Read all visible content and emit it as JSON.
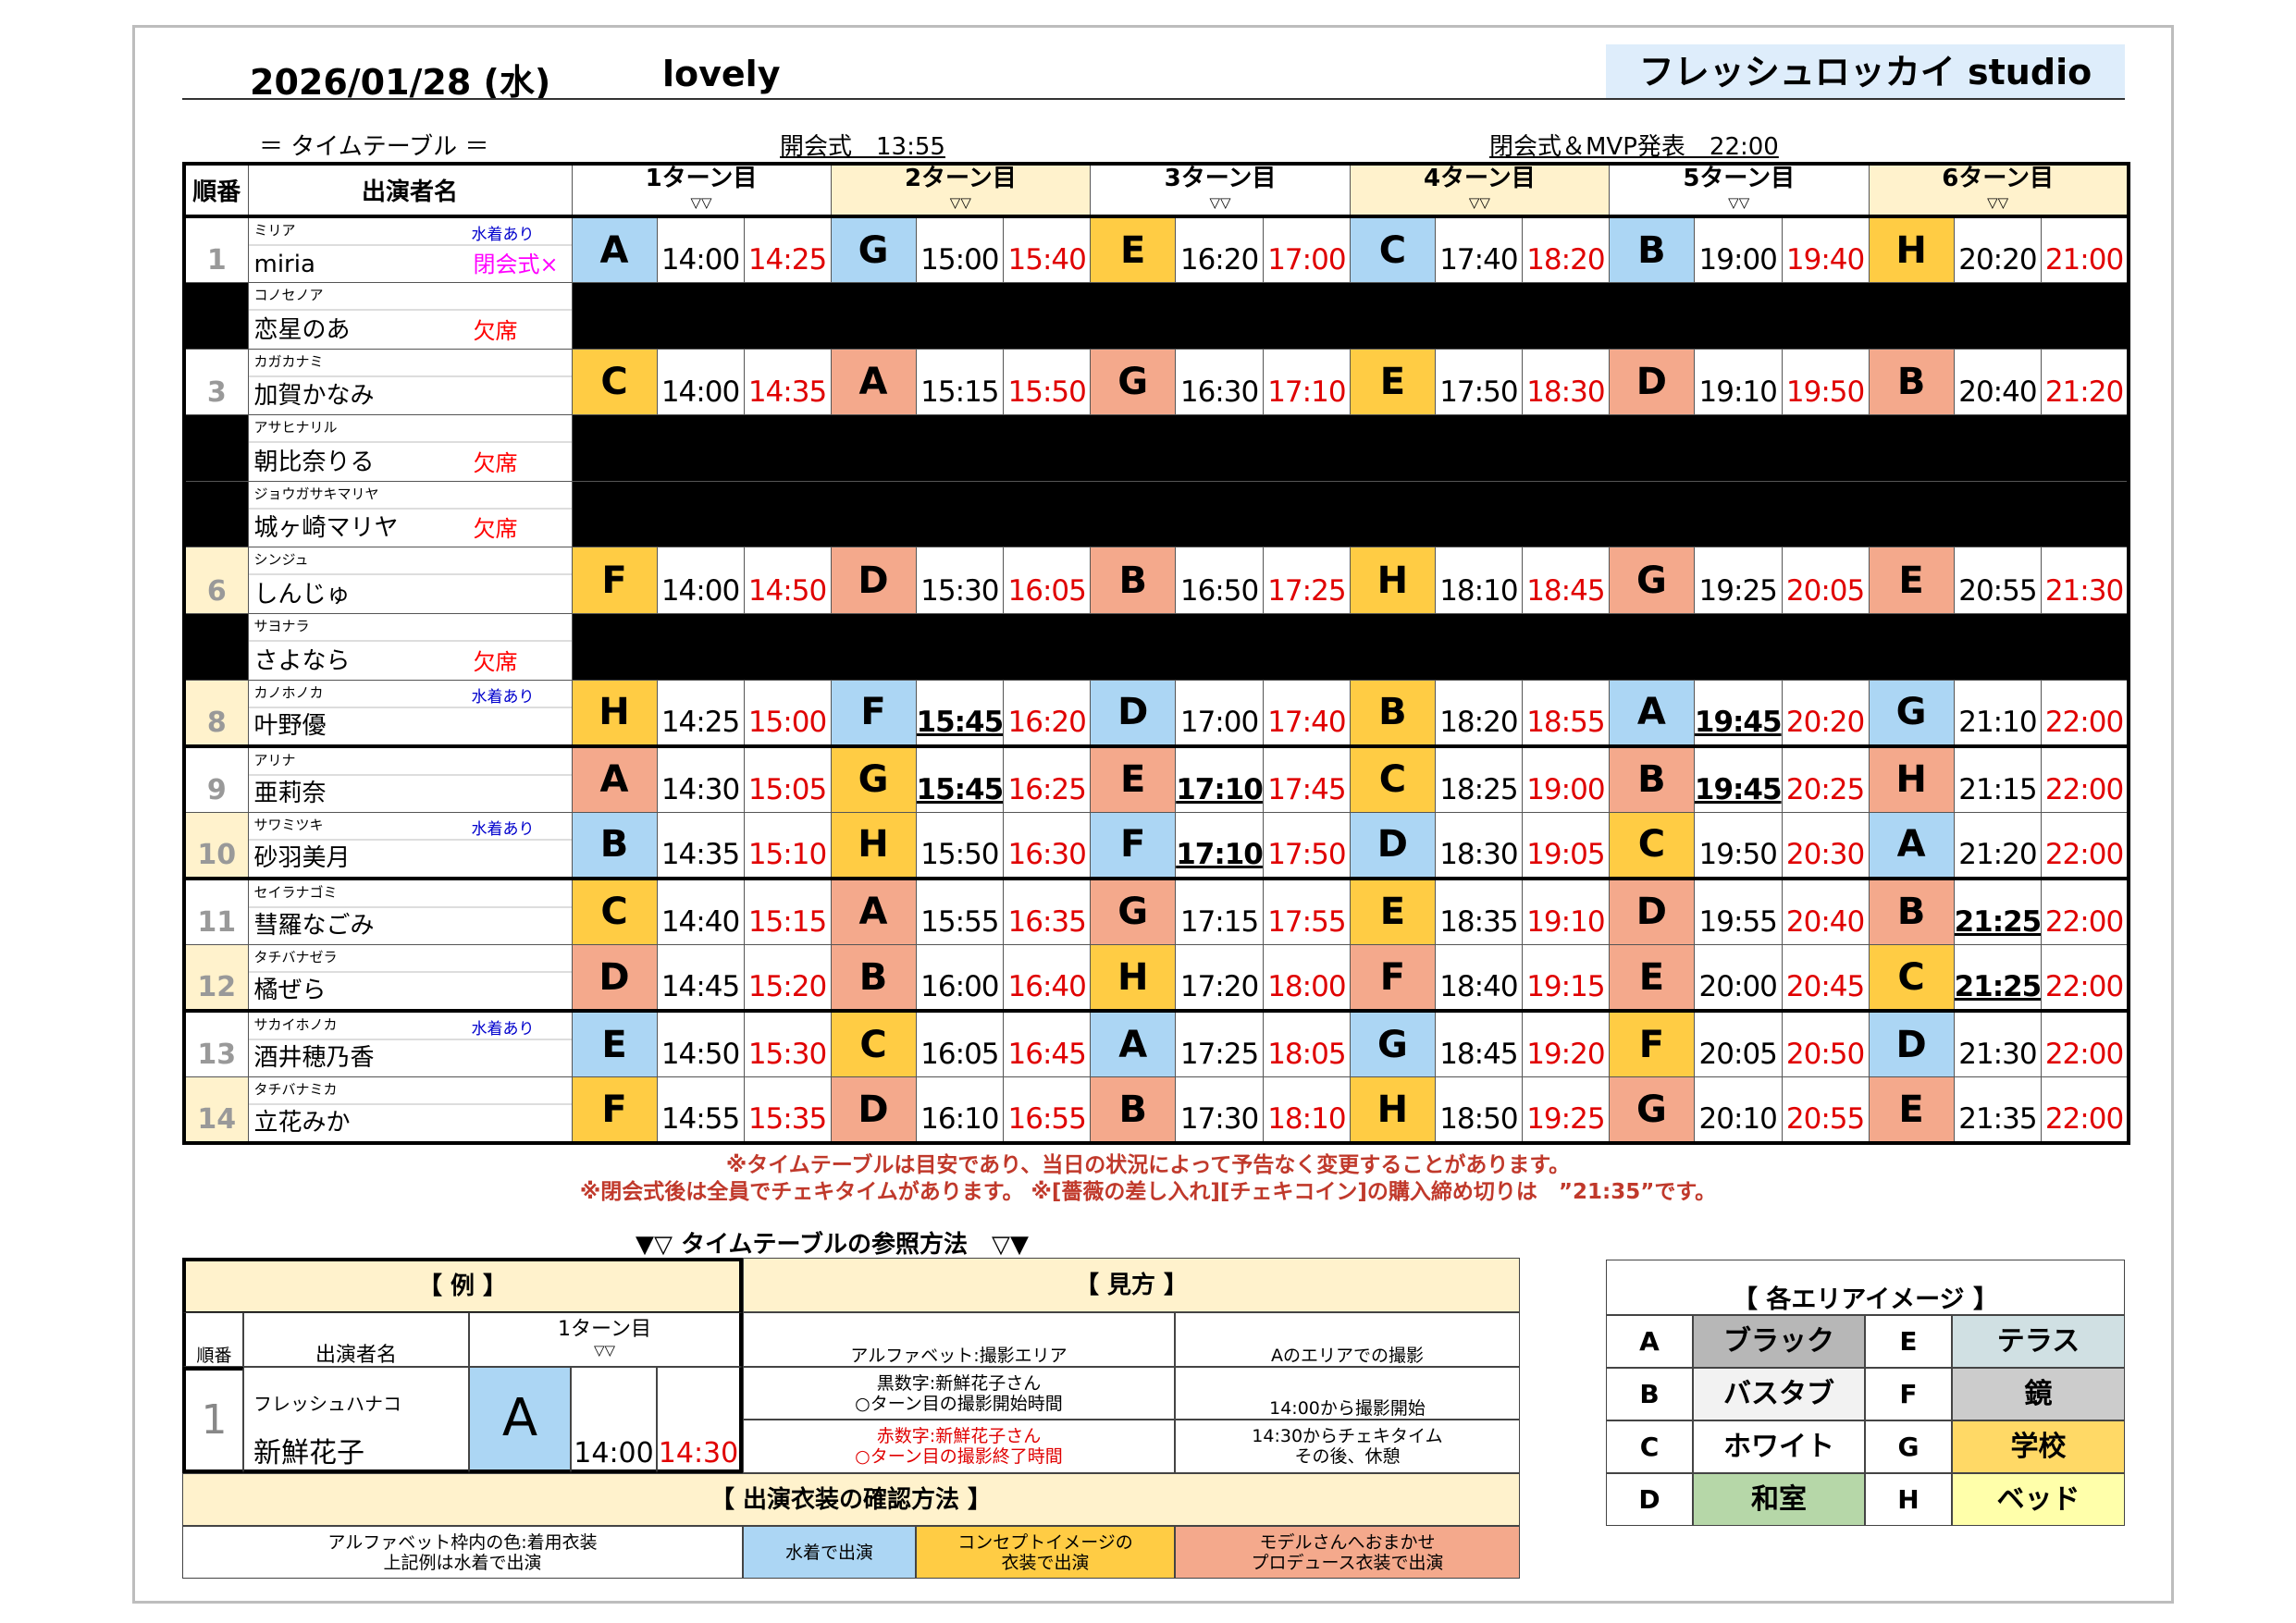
{
  "header": {
    "date": "2026/01/28 (水)",
    "event": "lovely",
    "studio": "フレッシュロッカイ studio"
  },
  "subheader": {
    "label": "＝ タイムテーブル ＝",
    "opening": "開会式　13:55",
    "closing": "閉会式＆MVP発表　22:00"
  },
  "table": {
    "col_order": "順番",
    "col_name": "出演者名",
    "turns": [
      "1ターン目",
      "2ターン目",
      "3ターン目",
      "4ターン目",
      "5ターン目",
      "6ターン目"
    ],
    "turn_mark": "▽▽"
  },
  "colors": {
    "b": "#acd6f4",
    "y": "#ffcc44",
    "s": "#f4a98c",
    "cream": "#fff2cc"
  },
  "rows": [
    {
      "num": "1",
      "kana": "ミリア",
      "name": "miria",
      "note": "水着あり",
      "status": "閉会式×",
      "status_color": "#ff00ff",
      "cream": false,
      "absent": false,
      "turns": [
        [
          "A",
          "b",
          "14:00",
          "14:25",
          0
        ],
        [
          "G",
          "b",
          "15:00",
          "15:40",
          0
        ],
        [
          "E",
          "y",
          "16:20",
          "17:00",
          0
        ],
        [
          "C",
          "b",
          "17:40",
          "18:20",
          0
        ],
        [
          "B",
          "b",
          "19:00",
          "19:40",
          0
        ],
        [
          "H",
          "y",
          "20:20",
          "21:00",
          0
        ]
      ]
    },
    {
      "num": "",
      "kana": "コノセノア",
      "name": "恋星のあ",
      "note": "",
      "status": "欠席",
      "status_color": "#ff0000",
      "absent": true
    },
    {
      "num": "3",
      "kana": "カガカナミ",
      "name": "加賀かなみ",
      "note": "",
      "status": "",
      "cream": false,
      "absent": false,
      "turns": [
        [
          "C",
          "y",
          "14:00",
          "14:35",
          0
        ],
        [
          "A",
          "s",
          "15:15",
          "15:50",
          0
        ],
        [
          "G",
          "s",
          "16:30",
          "17:10",
          0
        ],
        [
          "E",
          "y",
          "17:50",
          "18:30",
          0
        ],
        [
          "D",
          "s",
          "19:10",
          "19:50",
          0
        ],
        [
          "B",
          "s",
          "20:40",
          "21:20",
          0
        ]
      ]
    },
    {
      "num": "",
      "kana": "アサヒナリル",
      "name": "朝比奈りる",
      "note": "",
      "status": "欠席",
      "status_color": "#ff0000",
      "absent": true
    },
    {
      "num": "",
      "kana": "ジョウガサキマリヤ",
      "name": "城ヶ崎マリヤ",
      "note": "",
      "status": "欠席",
      "status_color": "#ff0000",
      "absent": true
    },
    {
      "num": "6",
      "kana": "シンジュ",
      "name": "しんじゅ",
      "note": "",
      "status": "",
      "cream": true,
      "absent": false,
      "turns": [
        [
          "F",
          "y",
          "14:00",
          "14:50",
          0
        ],
        [
          "D",
          "s",
          "15:30",
          "16:05",
          0
        ],
        [
          "B",
          "s",
          "16:50",
          "17:25",
          0
        ],
        [
          "H",
          "y",
          "18:10",
          "18:45",
          0
        ],
        [
          "G",
          "s",
          "19:25",
          "20:05",
          0
        ],
        [
          "E",
          "s",
          "20:55",
          "21:30",
          0
        ]
      ]
    },
    {
      "num": "",
      "kana": "サヨナラ",
      "name": "さよなら",
      "note": "",
      "status": "欠席",
      "status_color": "#ff0000",
      "absent": true
    },
    {
      "num": "8",
      "kana": "カノホノカ",
      "name": "叶野優",
      "note": "水着あり",
      "status": "",
      "cream": true,
      "absent": false,
      "thick": true,
      "turns": [
        [
          "H",
          "y",
          "14:25",
          "15:00",
          0
        ],
        [
          "F",
          "b",
          "15:45",
          "16:20",
          1
        ],
        [
          "D",
          "b",
          "17:00",
          "17:40",
          0
        ],
        [
          "B",
          "y",
          "18:20",
          "18:55",
          0
        ],
        [
          "A",
          "b",
          "19:45",
          "20:20",
          1
        ],
        [
          "G",
          "b",
          "21:10",
          "22:00",
          0
        ]
      ]
    },
    {
      "num": "9",
      "kana": "アリナ",
      "name": "亜莉奈",
      "note": "",
      "status": "",
      "cream": false,
      "absent": false,
      "turns": [
        [
          "A",
          "s",
          "14:30",
          "15:05",
          0
        ],
        [
          "G",
          "y",
          "15:45",
          "16:25",
          1
        ],
        [
          "E",
          "s",
          "17:10",
          "17:45",
          1
        ],
        [
          "C",
          "y",
          "18:25",
          "19:00",
          0
        ],
        [
          "B",
          "s",
          "19:45",
          "20:25",
          1
        ],
        [
          "H",
          "s",
          "21:15",
          "22:00",
          0
        ]
      ]
    },
    {
      "num": "10",
      "kana": "サワミツキ",
      "name": "砂羽美月",
      "note": "水着あり",
      "status": "",
      "cream": true,
      "absent": false,
      "thick": true,
      "turns": [
        [
          "B",
          "b",
          "14:35",
          "15:10",
          0
        ],
        [
          "H",
          "y",
          "15:50",
          "16:30",
          0
        ],
        [
          "F",
          "b",
          "17:10",
          "17:50",
          1
        ],
        [
          "D",
          "b",
          "18:30",
          "19:05",
          0
        ],
        [
          "C",
          "y",
          "19:50",
          "20:30",
          0
        ],
        [
          "A",
          "b",
          "21:20",
          "22:00",
          0
        ]
      ]
    },
    {
      "num": "11",
      "kana": "セイラナゴミ",
      "name": "彗羅なごみ",
      "note": "",
      "status": "",
      "cream": false,
      "absent": false,
      "turns": [
        [
          "C",
          "y",
          "14:40",
          "15:15",
          0
        ],
        [
          "A",
          "s",
          "15:55",
          "16:35",
          0
        ],
        [
          "G",
          "s",
          "17:15",
          "17:55",
          0
        ],
        [
          "E",
          "y",
          "18:35",
          "19:10",
          0
        ],
        [
          "D",
          "s",
          "19:55",
          "20:40",
          0
        ],
        [
          "B",
          "s",
          "21:25",
          "22:00",
          1
        ]
      ]
    },
    {
      "num": "12",
      "kana": "タチバナゼラ",
      "name": "橘ぜら",
      "note": "",
      "status": "",
      "cream": true,
      "absent": false,
      "thick": true,
      "turns": [
        [
          "D",
          "s",
          "14:45",
          "15:20",
          0
        ],
        [
          "B",
          "s",
          "16:00",
          "16:40",
          0
        ],
        [
          "H",
          "y",
          "17:20",
          "18:00",
          0
        ],
        [
          "F",
          "s",
          "18:40",
          "19:15",
          0
        ],
        [
          "E",
          "s",
          "20:00",
          "20:45",
          0
        ],
        [
          "C",
          "y",
          "21:25",
          "22:00",
          1
        ]
      ]
    },
    {
      "num": "13",
      "kana": "サカイホノカ",
      "name": "酒井穂乃香",
      "note": "水着あり",
      "status": "",
      "cream": false,
      "absent": false,
      "turns": [
        [
          "E",
          "b",
          "14:50",
          "15:30",
          0
        ],
        [
          "C",
          "y",
          "16:05",
          "16:45",
          0
        ],
        [
          "A",
          "b",
          "17:25",
          "18:05",
          0
        ],
        [
          "G",
          "b",
          "18:45",
          "19:20",
          0
        ],
        [
          "F",
          "y",
          "20:05",
          "20:50",
          0
        ],
        [
          "D",
          "b",
          "21:30",
          "22:00",
          0
        ]
      ]
    },
    {
      "num": "14",
      "kana": "タチバナミカ",
      "name": "立花みか",
      "note": "",
      "status": "",
      "cream": true,
      "absent": false,
      "turns": [
        [
          "F",
          "y",
          "14:55",
          "15:35",
          0
        ],
        [
          "D",
          "s",
          "16:10",
          "16:55",
          0
        ],
        [
          "B",
          "s",
          "17:30",
          "18:10",
          0
        ],
        [
          "H",
          "y",
          "18:50",
          "19:25",
          0
        ],
        [
          "G",
          "s",
          "20:10",
          "20:55",
          0
        ],
        [
          "E",
          "s",
          "21:35",
          "22:00",
          0
        ]
      ]
    }
  ],
  "notes": {
    "line1": "※タイムテーブルは目安であり、当日の状況によって予告なく変更することがあります。",
    "line2": "※閉会式後は全員でチェキタイムがあります。 ※[薔薇の差し入れ][チェキコイン]の購入締め切りは　”21:35”です。"
  },
  "guide": {
    "title": "▼▽ タイムテーブルの参照方法　▽▼",
    "example_title": "【 例 】",
    "howto_title": "【 見方 】",
    "ex_order": "順番",
    "ex_name": "出演者名",
    "ex_turn": "1ターン目",
    "ex_mark": "▽▽",
    "ex_num": "1",
    "ex_kana": "フレッシュハナコ",
    "ex_pname": "新鮮花子",
    "ex_letter": "A",
    "ex_start": "14:00",
    "ex_end": "14:30",
    "h1a": "アルファベット:撮影エリア",
    "h1b": "Aのエリアでの撮影",
    "h2a1": "黒数字:新鮮花子さん",
    "h2a2": "○ターン目の撮影開始時間",
    "h2b": "14:00から撮影開始",
    "h3a1": "赤数字:新鮮花子さん",
    "h3a2": "○ターン目の撮影終了時間",
    "h3b1": "14:30からチェキタイム",
    "h3b2": "その後、休憩",
    "costume_title": "【 出演衣装の確認方法 】",
    "c0a": "アルファベット枠内の色:着用衣装",
    "c0b": "上記例は水着で出演",
    "c1": "水着で出演",
    "c2a": "コンセプトイメージの",
    "c2b": "衣装で出演",
    "c3a": "モデルさんへおまかせ",
    "c3b": "プロデュース衣装で出演"
  },
  "areas": {
    "title": "【 各エリアイメージ 】",
    "items": [
      {
        "letter": "A",
        "name": "ブラック",
        "color": "#b7b7b7"
      },
      {
        "letter": "E",
        "name": "テラス",
        "color": "#d0e0e3"
      },
      {
        "letter": "B",
        "name": "バスタブ",
        "color": "#f2f2f2"
      },
      {
        "letter": "F",
        "name": "鏡",
        "color": "#cccccc"
      },
      {
        "letter": "C",
        "name": "ホワイト",
        "color": "#ffffff"
      },
      {
        "letter": "G",
        "name": "学校",
        "color": "#ffd966"
      },
      {
        "letter": "D",
        "name": "和室",
        "color": "#b6d7a8"
      },
      {
        "letter": "H",
        "name": "ベッド",
        "color": "#ffffaa"
      }
    ]
  }
}
